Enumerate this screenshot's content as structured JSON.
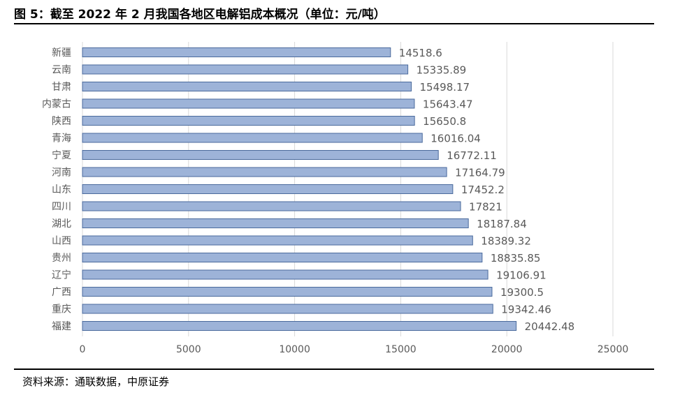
{
  "figure_title": "图 5：截至 2022 年 2 月我国各地区电解铝成本概况（单位：元/吨）",
  "source": "资料来源：通联数据，中原证券",
  "colors": {
    "bar_fill": "#9db3d8",
    "bar_stroke": "#4a6a9c",
    "grid": "#d9d9d9",
    "label": "#595959"
  },
  "chart_data": {
    "type": "bar",
    "orientation": "horizontal",
    "categories": [
      "新疆",
      "云南",
      "甘肃",
      "内蒙古",
      "陕西",
      "青海",
      "宁夏",
      "河南",
      "山东",
      "四川",
      "湖北",
      "山西",
      "贵州",
      "辽宁",
      "广西",
      "重庆",
      "福建"
    ],
    "values": [
      14518.6,
      15335.89,
      15498.17,
      15643.47,
      15650.8,
      16016.04,
      16772.11,
      17164.79,
      17452.2,
      17821,
      18187.84,
      18389.32,
      18835.85,
      19106.91,
      19300.5,
      19342.46,
      20442.48
    ],
    "value_labels": [
      "14518.6",
      "15335.89",
      "15498.17",
      "15643.47",
      "15650.8",
      "16016.04",
      "16772.11",
      "17164.79",
      "17452.2",
      "17821",
      "18187.84",
      "18389.32",
      "18835.85",
      "19106.91",
      "19300.5",
      "19342.46",
      "20442.48"
    ],
    "xlim": [
      0,
      25000
    ],
    "xticks": [
      0,
      5000,
      10000,
      15000,
      20000,
      25000
    ],
    "xtick_labels": [
      "0",
      "5000",
      "10000",
      "15000",
      "20000",
      "25000"
    ],
    "grid": "vertical",
    "legend": "none"
  }
}
